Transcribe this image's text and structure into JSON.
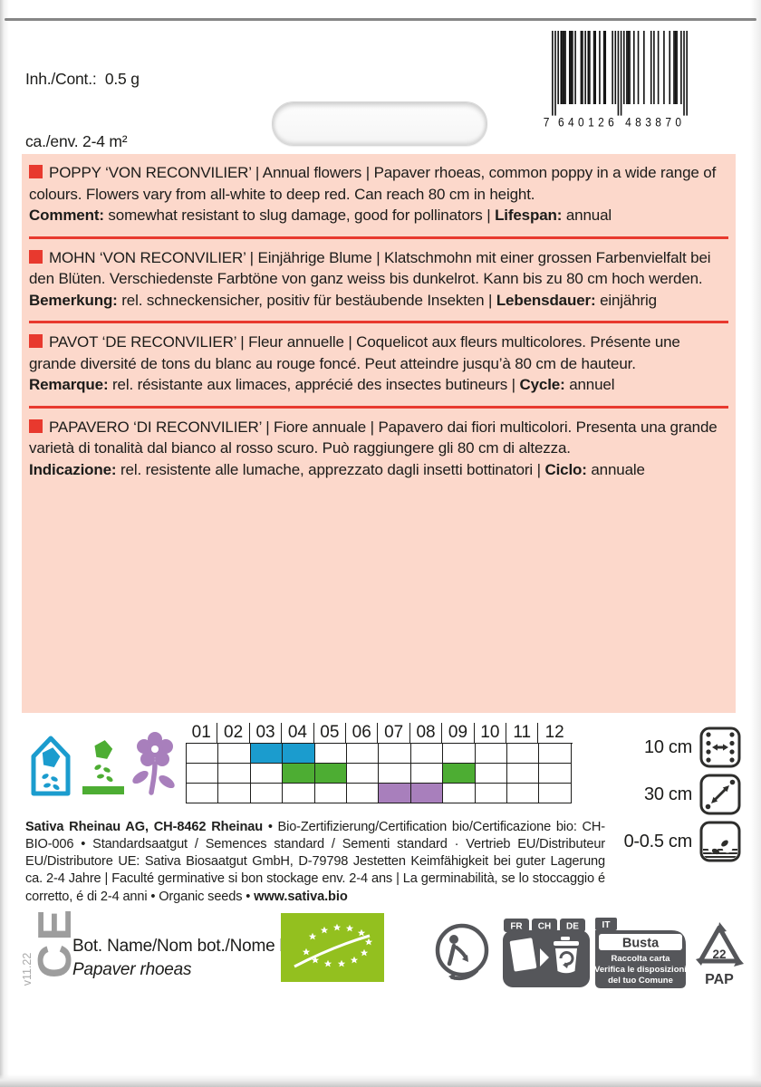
{
  "header": {
    "content_line": "Inh./Cont.:  0.5 g",
    "area_line": "ca./env. 2-4 m²",
    "barcode": {
      "digits": "7640126483870",
      "display_prefix": "7",
      "display_left": "640126",
      "display_right": "483870"
    }
  },
  "blocks": [
    {
      "lang": "en",
      "body": "POPPY ‘VON RECONVILIER’ | Annual flowers | Papaver rhoeas, common poppy in a wide range of colours. Flowers vary from all-white to deep red. Can reach 80 cm in height.",
      "note_label": "Comment:",
      "note_text": " somewhat resistant to slug damage, good for pollinators | ",
      "cycle_label": "Lifespan:",
      "cycle_text": " annual"
    },
    {
      "lang": "de",
      "body": "MOHN ‘VON RECONVILIER’ | Einjährige Blume | Klatschmohn mit einer grossen Farbenvielfalt bei den Blüten. Verschiedenste Farbtöne von ganz weiss bis dunkelrot. Kann bis zu 80 cm hoch werden.",
      "note_label": "Bemerkung:",
      "note_text": " rel. schneckensicher, positiv für bestäubende Insekten | ",
      "cycle_label": "Lebensdauer:",
      "cycle_text": " einjährig"
    },
    {
      "lang": "fr",
      "body": "PAVOT ‘DE RECONVILIER’ | Fleur annuelle | Coquelicot aux fleurs multicolores. Présente une grande diversité de tons du blanc au rouge foncé. Peut atteindre jusqu’à 80 cm de hauteur.",
      "note_label": "Remarque:",
      "note_text": " rel. résistante aux limaces, apprécié des insectes butineurs | ",
      "cycle_label": "Cycle:",
      "cycle_text": " annuel"
    },
    {
      "lang": "it",
      "body": "PAPAVERO ‘DI RECONVILIER’ | Fiore annuale | Papavero dai fiori multicolori. Presenta una grande varietà di tonalità dal bianco al rosso scuro. Può raggiungere gli 80 cm di altezza.",
      "note_label": "Indicazione:",
      "note_text": " rel. resistente alle lumache, apprezzato dagli insetti bottinatori | ",
      "cycle_label": "Ciclo:",
      "cycle_text": " annuale"
    }
  ],
  "calendar": {
    "months": [
      "01",
      "02",
      "03",
      "04",
      "05",
      "06",
      "07",
      "08",
      "09",
      "10",
      "11",
      "12"
    ],
    "rows": [
      {
        "name": "sowing-under-glass",
        "color": "#1b9cce",
        "months": [
          3,
          4
        ]
      },
      {
        "name": "direct-sowing",
        "color": "#4dad33",
        "months": [
          4,
          5,
          9
        ]
      },
      {
        "name": "flowering",
        "color": "#a87fbc",
        "months": [
          7,
          8
        ]
      }
    ],
    "legend_icons": [
      "sowing-under-glass-icon",
      "direct-sowing-icon",
      "flowering-icon"
    ]
  },
  "spacing": {
    "row_distance": "10 cm",
    "plant_distance": "30 cm",
    "sowing_depth": "0-0.5 cm"
  },
  "company": {
    "name": "Sativa Rheinau AG, CH-8462 Rheinau",
    "body": " • Bio-Zertifizierung/Certification bio/Certificazione bio: CH-BIO-006 • Standardsaatgut / Semences standard / Sementi standard · Vertrieb EU/Distributeur EU/Distributore UE: Sativa Biosaatgut GmbH, D-79798 Jestetten Keimfähigkeit bei guter Lagerung ca. 2-4 Jahre | Faculté germinative si bon stockage env. 2-4 ans | La germinabilità, se lo stoccaggio é corretto, é di 2-4 anni • Organic seeds • ",
    "site": "www.sativa.bio"
  },
  "footer": {
    "version": "v11.22",
    "ce_text": "CE",
    "bot_label": "Bot. Name/Nom bot./Nome bot.:",
    "bot_name": "Papaver rhoeas",
    "bin_fr": "FR",
    "bin_ch": "CH",
    "bin_de": "DE",
    "busta_tab": "IT",
    "busta_title": "Busta",
    "busta_l1": "Raccolta carta",
    "busta_l2": "Verifica le disposizioni",
    "busta_l3": "del tuo Comune",
    "pap_number": "22",
    "pap_code": "PAP"
  },
  "colors": {
    "panel_pink": "#fcd8cb",
    "accent_red": "#e8392e",
    "sowing_blue": "#1b9cce",
    "sowing_green": "#4dad33",
    "flower_purple": "#a87fbc",
    "organic_green": "#93c01f",
    "icon_gray": "#55565a"
  }
}
